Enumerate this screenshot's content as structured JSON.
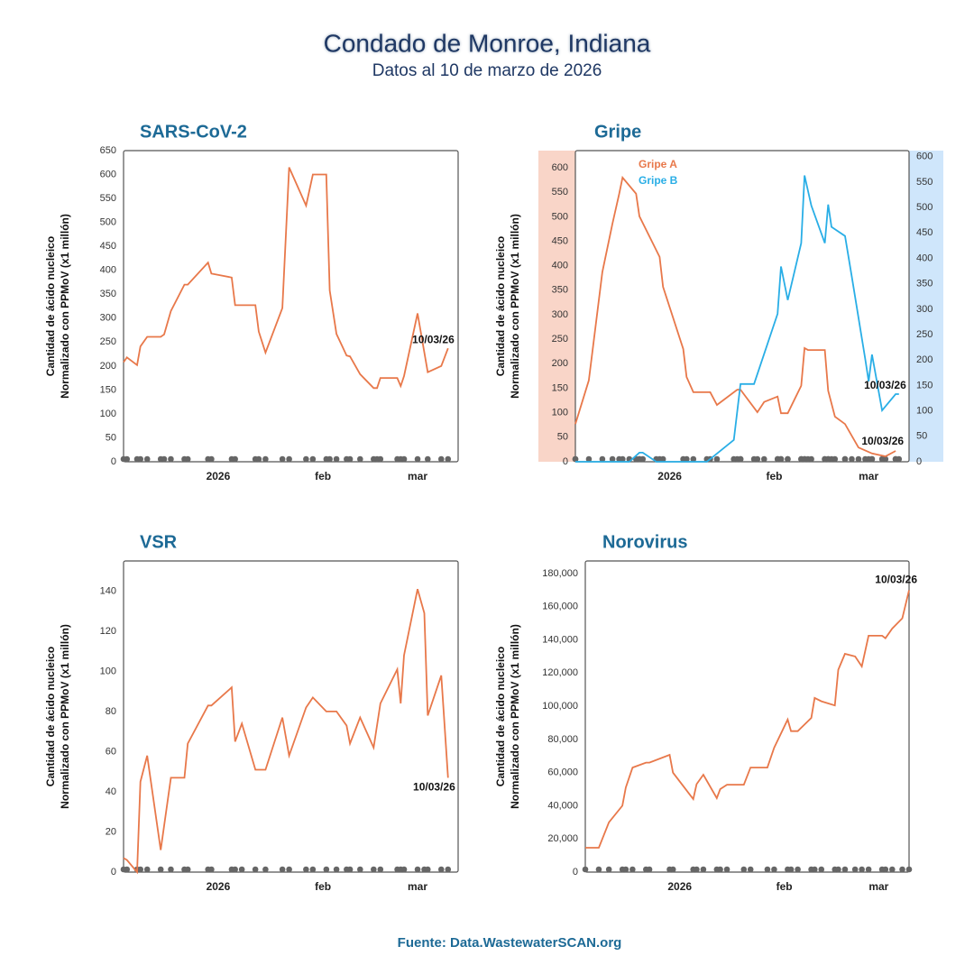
{
  "header": {
    "title": "Condado de Monroe, Indiana",
    "subtitle": "Datos al 10 de marzo de 2026"
  },
  "footer": "Fuente: Data.WastewaterSCAN.org",
  "chart_data": [
    {
      "type": "line",
      "title": "SARS-CoV-2",
      "ylabel": [
        "Cantidad de ácido nucleico",
        "Normalizado con PPMoV (x1 millón)"
      ],
      "xlim": [
        -28,
        71
      ],
      "xticks": [
        {
          "value": 0,
          "label": "2026"
        },
        {
          "value": 31,
          "label": "feb"
        },
        {
          "value": 59,
          "label": "mar"
        }
      ],
      "ylim": [
        0,
        650
      ],
      "yticks": [
        0,
        50,
        100,
        150,
        200,
        250,
        300,
        350,
        400,
        450,
        500,
        550,
        600,
        650
      ],
      "annotations": [
        "10/03/26"
      ],
      "series": [
        {
          "color": "#e8784a",
          "x": [
            -28,
            -27,
            -24,
            -23,
            -21,
            -17,
            -16,
            -14,
            -10,
            -9,
            -3,
            -2,
            4,
            5,
            11,
            12,
            14,
            19,
            21,
            26,
            28,
            32,
            33,
            35,
            38,
            39,
            42,
            46,
            47,
            48,
            53,
            54,
            55,
            59,
            62,
            66,
            68
          ],
          "values": [
            208,
            218,
            202,
            241,
            261,
            261,
            266,
            315,
            370,
            370,
            416,
            393,
            385,
            327,
            327,
            272,
            228,
            321,
            615,
            535,
            600,
            600,
            358,
            267,
            222,
            220,
            183,
            154,
            154,
            175,
            175,
            158,
            179,
            310,
            187,
            200,
            237
          ]
        }
      ]
    },
    {
      "type": "line",
      "title": "Gripe",
      "ylabel": [
        "Cantidad de ácido nucleico",
        "Normalizado con PPMoV (x1 millón)"
      ],
      "xlim": [
        -28,
        71
      ],
      "xticks": [
        {
          "value": 0,
          "label": "2026"
        },
        {
          "value": 31,
          "label": "feb"
        },
        {
          "value": 59,
          "label": "mar"
        }
      ],
      "ylim": [
        0,
        635
      ],
      "yticks": [
        0,
        50,
        100,
        150,
        200,
        250,
        300,
        350,
        400,
        450,
        500,
        550,
        600
      ],
      "y2lim": [
        0,
        612
      ],
      "y2ticks": [
        0,
        50,
        100,
        150,
        200,
        250,
        300,
        350,
        400,
        450,
        500,
        550,
        600
      ],
      "annotations": [
        "10/03/26",
        "10/03/26"
      ],
      "series": [
        {
          "name": "Gripe A",
          "color": "#e8784a",
          "x": [
            -28,
            -24,
            -20,
            -17,
            -15,
            -14,
            -10,
            -9,
            -3,
            -2,
            4,
            5,
            7,
            12,
            14,
            20,
            21,
            26,
            28,
            32,
            33,
            35,
            39,
            40,
            41,
            46,
            47,
            49,
            52,
            56,
            60,
            64,
            67
          ],
          "values": [
            77,
            166,
            387,
            486,
            547,
            580,
            547,
            501,
            418,
            357,
            230,
            173,
            142,
            142,
            116,
            147,
            147,
            101,
            122,
            133,
            99,
            99,
            155,
            232,
            228,
            228,
            145,
            92,
            77,
            29,
            17,
            11,
            22
          ]
        },
        {
          "name": "Gripe B",
          "color": "#29aee6",
          "axis": "y2",
          "x": [
            -28,
            -12,
            -9,
            -8,
            -4,
            11,
            19,
            21,
            25,
            32,
            33,
            35,
            39,
            40,
            42,
            46,
            47,
            48,
            52,
            54,
            58,
            59,
            60,
            63,
            67,
            68
          ],
          "values": [
            0,
            0,
            18,
            18,
            0,
            0,
            43,
            153,
            153,
            291,
            384,
            318,
            430,
            563,
            504,
            430,
            506,
            462,
            444,
            364,
            202,
            158,
            211,
            101,
            133,
            133
          ]
        }
      ]
    },
    {
      "type": "line",
      "title": "VSR",
      "ylabel": [
        "Cantidad de ácido nucleico",
        "Normalizado con PPMoV (x1 millón)"
      ],
      "xlim": [
        -28,
        71
      ],
      "xticks": [
        {
          "value": 0,
          "label": "2026"
        },
        {
          "value": 31,
          "label": "feb"
        },
        {
          "value": 59,
          "label": "mar"
        }
      ],
      "ylim": [
        0,
        155
      ],
      "yticks": [
        0,
        20,
        40,
        60,
        80,
        100,
        120,
        140
      ],
      "annotations": [
        "10/03/26"
      ],
      "series": [
        {
          "color": "#e8784a",
          "x": [
            -28,
            -27,
            -24,
            -23,
            -21,
            -17,
            -14,
            -10,
            -9,
            -3,
            -2,
            4,
            5,
            7,
            11,
            14,
            19,
            21,
            26,
            28,
            32,
            35,
            38,
            39,
            42,
            46,
            48,
            53,
            54,
            55,
            59,
            61,
            62,
            66,
            68
          ],
          "values": [
            7,
            6,
            0,
            45,
            58,
            11,
            47,
            47,
            64,
            83,
            83,
            92,
            65,
            74,
            51,
            51,
            77,
            58,
            82,
            87,
            80,
            80,
            73,
            64,
            77,
            62,
            84,
            101,
            84,
            108,
            141,
            129,
            78,
            98,
            47
          ]
        }
      ]
    },
    {
      "type": "line",
      "title": "Norovirus",
      "ylabel": [
        "Cantidad de ácido nucleico",
        "Normalizado con PPMoV (x1 millón)"
      ],
      "xlim": [
        -28,
        68
      ],
      "xticks": [
        {
          "value": 0,
          "label": "2026"
        },
        {
          "value": 31,
          "label": "feb"
        },
        {
          "value": 59,
          "label": "mar"
        }
      ],
      "ylim": [
        0,
        187600
      ],
      "yticks": [
        0,
        {
          "value": 20000,
          "label": "20,000"
        },
        {
          "value": 40000,
          "label": "40,000"
        },
        {
          "value": 60000,
          "label": "60,000"
        },
        {
          "value": 80000,
          "label": "80,000"
        },
        {
          "value": 100000,
          "label": "100,000"
        },
        {
          "value": 120000,
          "label": "120,000"
        },
        {
          "value": 140000,
          "label": "140,000"
        },
        {
          "value": 160000,
          "label": "160,000"
        },
        {
          "value": 180000,
          "label": "180,000"
        }
      ],
      "annotations": [
        "10/03/26"
      ],
      "series": [
        {
          "color": "#e8784a",
          "x": [
            -28,
            -24,
            -21,
            -17,
            -16,
            -14,
            -10,
            -9,
            -3,
            -2,
            4,
            5,
            7,
            11,
            12,
            14,
            19,
            21,
            26,
            28,
            32,
            33,
            35,
            39,
            40,
            42,
            46,
            47,
            49,
            52,
            54,
            56,
            60,
            61,
            63,
            66,
            68
          ],
          "values": [
            14700,
            14700,
            30000,
            40000,
            51000,
            63000,
            66000,
            66000,
            70700,
            60000,
            44000,
            53000,
            58700,
            44600,
            50000,
            52700,
            52700,
            63000,
            63000,
            75000,
            92000,
            85000,
            85000,
            93000,
            105000,
            103000,
            100500,
            122000,
            131600,
            130000,
            124000,
            142500,
            142500,
            141000,
            146800,
            153000,
            170000
          ]
        }
      ]
    }
  ]
}
